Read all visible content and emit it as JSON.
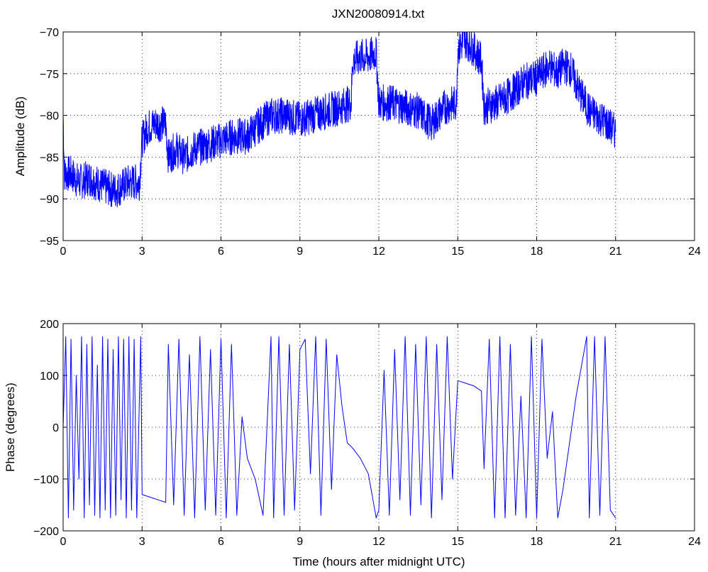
{
  "figure_title": "JXN20080914.txt",
  "chart_data": [
    {
      "type": "line",
      "title": "JXN20080914.txt",
      "xlabel": "",
      "ylabel": "Amplitude (dB)",
      "xlim": [
        0,
        24
      ],
      "ylim": [
        -95,
        -70
      ],
      "xticks": [
        0,
        3,
        6,
        9,
        12,
        15,
        18,
        21,
        24
      ],
      "yticks": [
        -95,
        -90,
        -85,
        -80,
        -75,
        -70
      ],
      "xtick_labels": [
        "0",
        "3",
        "6",
        "9",
        "12",
        "15",
        "18",
        "21",
        "24"
      ],
      "ytick_labels": [
        "−95",
        "−90",
        "−85",
        "−80",
        "−75",
        "−70"
      ],
      "grid": true,
      "line_color": "#0000ff",
      "series": [
        {
          "x": [
            0,
            0.05,
            0.3,
            0.6,
            1.0,
            1.5,
            2.0,
            2.5,
            2.9,
            3.0,
            3.2,
            3.5,
            3.8,
            3.9,
            4.0,
            4.3,
            4.6,
            5.0,
            5.5,
            6.0,
            6.5,
            7.0,
            7.5,
            7.9,
            8.0,
            8.5,
            9.0,
            9.5,
            10.0,
            10.5,
            10.95,
            11.0,
            11.3,
            11.6,
            11.9,
            12.0,
            12.5,
            13.0,
            13.5,
            14.0,
            14.5,
            14.95,
            15.0,
            15.3,
            15.6,
            15.9,
            16.0,
            16.5,
            17.0,
            17.5,
            18.0,
            18.5,
            18.8,
            19.0,
            19.3,
            19.6,
            20.0,
            20.5,
            21.0
          ],
          "y": [
            -80,
            -87,
            -87,
            -88,
            -87.5,
            -88.5,
            -89,
            -88,
            -88,
            -83,
            -81.5,
            -81,
            -81,
            -81,
            -85,
            -84,
            -85,
            -84,
            -83.5,
            -83,
            -82.5,
            -82.5,
            -81,
            -80,
            -80,
            -80,
            -80.5,
            -80,
            -79.5,
            -79,
            -78.5,
            -73.5,
            -73,
            -73,
            -72.5,
            -78.5,
            -78.5,
            -79,
            -79.5,
            -81,
            -79,
            -78.5,
            -72,
            -71,
            -72,
            -73.5,
            -79,
            -78.5,
            -77.5,
            -76,
            -75.5,
            -74,
            -75,
            -74,
            -74.5,
            -77,
            -79.5,
            -80.5,
            -82
          ]
        }
      ]
    },
    {
      "type": "line",
      "title": "",
      "xlabel": "Time (hours after midnight UTC)",
      "ylabel": "Phase (degrees)",
      "xlim": [
        0,
        24
      ],
      "ylim": [
        -200,
        200
      ],
      "xticks": [
        0,
        3,
        6,
        9,
        12,
        15,
        18,
        21,
        24
      ],
      "yticks": [
        -200,
        -100,
        0,
        100,
        200
      ],
      "xtick_labels": [
        "0",
        "3",
        "6",
        "9",
        "12",
        "15",
        "18",
        "21",
        "24"
      ],
      "ytick_labels": [
        "−200",
        "−100",
        "0",
        "100",
        "200"
      ],
      "grid": true,
      "line_color": "#0000ff",
      "series": [
        {
          "x": [
            0,
            0.1,
            0.2,
            0.3,
            0.4,
            0.5,
            0.6,
            0.7,
            0.8,
            0.9,
            1.0,
            1.1,
            1.2,
            1.3,
            1.4,
            1.5,
            1.6,
            1.7,
            1.8,
            1.9,
            2.0,
            2.1,
            2.2,
            2.3,
            2.4,
            2.5,
            2.6,
            2.7,
            2.8,
            2.95,
            3.0,
            3.3,
            3.6,
            3.9,
            4.0,
            4.2,
            4.4,
            4.6,
            4.8,
            5.0,
            5.2,
            5.4,
            5.6,
            5.8,
            6.0,
            6.2,
            6.4,
            6.6,
            6.8,
            7.0,
            7.3,
            7.6,
            7.9,
            8.0,
            8.2,
            8.4,
            8.6,
            8.8,
            9.0,
            9.2,
            9.4,
            9.6,
            9.8,
            10.0,
            10.2,
            10.4,
            10.6,
            10.8,
            11.0,
            11.3,
            11.6,
            11.9,
            12.0,
            12.2,
            12.4,
            12.6,
            12.8,
            13.0,
            13.2,
            13.4,
            13.6,
            13.8,
            14.0,
            14.2,
            14.4,
            14.6,
            14.8,
            15.0,
            15.3,
            15.6,
            15.9,
            16.0,
            16.2,
            16.4,
            16.6,
            16.8,
            17.0,
            17.2,
            17.4,
            17.6,
            17.8,
            18.0,
            18.2,
            18.4,
            18.6,
            18.8,
            19.0,
            19.5,
            19.9,
            20.0,
            20.2,
            20.4,
            20.6,
            20.8,
            21.0
          ],
          "y": [
            0,
            175,
            -175,
            170,
            -160,
            100,
            -100,
            175,
            -175,
            160,
            -150,
            175,
            -170,
            120,
            -175,
            175,
            -160,
            170,
            -175,
            150,
            -170,
            175,
            -140,
            170,
            -175,
            175,
            -160,
            170,
            -175,
            175,
            -130,
            -135,
            -140,
            -145,
            160,
            -150,
            170,
            -170,
            140,
            -175,
            175,
            -160,
            150,
            -170,
            170,
            -175,
            160,
            -170,
            20,
            -60,
            -100,
            -170,
            175,
            -175,
            175,
            -170,
            160,
            -160,
            150,
            170,
            -90,
            175,
            -170,
            170,
            -120,
            140,
            40,
            -30,
            -40,
            -60,
            -90,
            -175,
            -160,
            110,
            -170,
            150,
            -140,
            175,
            -170,
            160,
            -150,
            175,
            -175,
            160,
            -140,
            175,
            -100,
            90,
            85,
            80,
            70,
            -80,
            170,
            -175,
            175,
            -175,
            160,
            -170,
            60,
            -175,
            175,
            -175,
            170,
            -60,
            30,
            -175,
            -120,
            60,
            175,
            -175,
            175,
            -170,
            175,
            -160,
            -175
          ]
        }
      ]
    }
  ]
}
